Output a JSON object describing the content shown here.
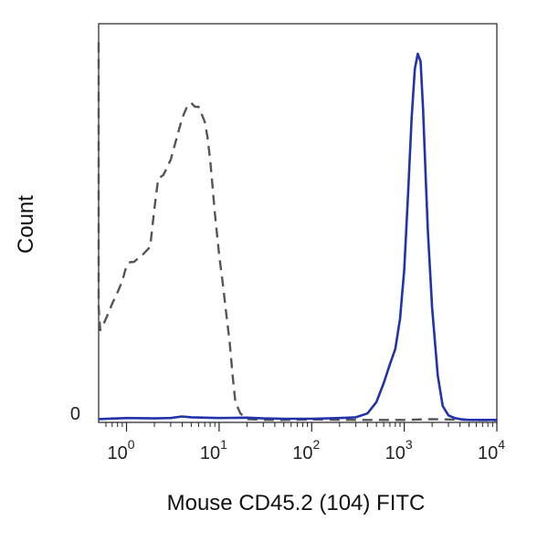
{
  "chart_data": {
    "type": "line",
    "title": "",
    "xlabel": "Mouse CD45.2 (104) FITC",
    "ylabel": "Count",
    "x_scale": "log",
    "xlim": [
      0.5,
      10000
    ],
    "ylim": [
      0,
      100
    ],
    "grid": false,
    "legend": "none",
    "x_ticks": [
      {
        "value": 1,
        "base": "10",
        "exp": "0"
      },
      {
        "value": 10,
        "base": "10",
        "exp": "1"
      },
      {
        "value": 100,
        "base": "10",
        "exp": "2"
      },
      {
        "value": 1000,
        "base": "10",
        "exp": "3"
      },
      {
        "value": 10000,
        "base": "10",
        "exp": "4"
      }
    ],
    "y_ticks": [
      {
        "value": 0,
        "label": "0"
      }
    ],
    "series": [
      {
        "color": "#555555",
        "style": "dashed",
        "x": [
          0.5,
          0.5,
          0.52,
          0.55,
          0.6,
          0.7,
          0.8,
          0.9,
          1.0,
          1.1,
          1.2,
          1.5,
          1.8,
          2.0,
          2.2,
          2.5,
          3.0,
          3.5,
          4.0,
          4.5,
          5.0,
          5.5,
          6.0,
          6.5,
          7.0,
          7.5,
          8.0,
          8.5,
          9.0,
          10,
          11,
          12,
          13,
          14,
          15,
          17,
          20,
          30,
          50,
          100,
          300,
          1000,
          2000,
          5000,
          10000
        ],
        "y": [
          100,
          30,
          24,
          25,
          27,
          31,
          34,
          37,
          41,
          42,
          42,
          44,
          46,
          56,
          64,
          65,
          69,
          75,
          80,
          83,
          84,
          83,
          83,
          81,
          79,
          75,
          69,
          62,
          55,
          44,
          36,
          28,
          21,
          12,
          5,
          2,
          0.5,
          0.3,
          0.3,
          0.4,
          0.3,
          0.3,
          0.5,
          0.3,
          0.2
        ]
      },
      {
        "color": "#2233aa",
        "style": "solid",
        "x": [
          0.5,
          1,
          2,
          3,
          4,
          5,
          10,
          20,
          30,
          50,
          100,
          200,
          300,
          400,
          500,
          600,
          700,
          800,
          900,
          1000,
          1100,
          1200,
          1300,
          1400,
          1500,
          1600,
          1700,
          1800,
          2000,
          2300,
          2600,
          3000,
          3500,
          4000,
          5000,
          10000
        ],
        "y": [
          0.5,
          0.8,
          0.7,
          0.8,
          1.2,
          1.0,
          0.8,
          0.9,
          0.7,
          0.6,
          0.6,
          0.8,
          1.0,
          2.0,
          5.0,
          10,
          15,
          19,
          27,
          40,
          60,
          80,
          93,
          97,
          95,
          82,
          65,
          50,
          30,
          12,
          4,
          1.5,
          0.8,
          0.5,
          0.3,
          0.3
        ]
      }
    ]
  }
}
